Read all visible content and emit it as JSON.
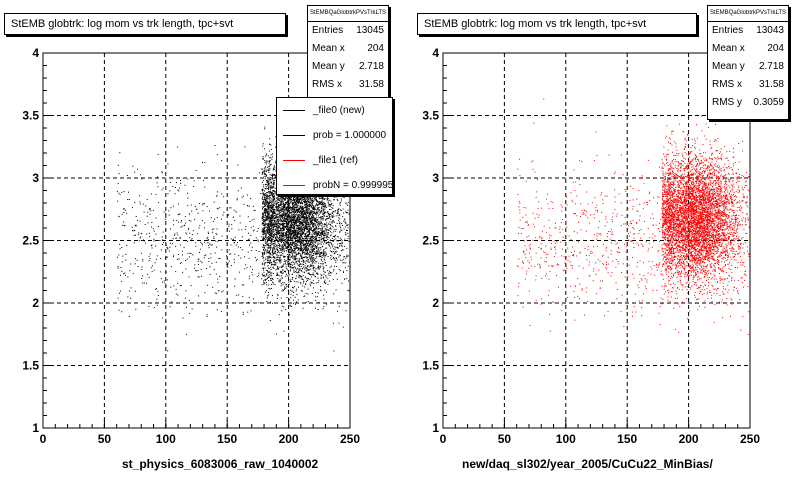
{
  "footer": "",
  "chart_data": [
    {
      "type": "scatter",
      "title": "StEMB globtrk: log mom vs trk length, tpc+svt",
      "xlabel": "st_physics_6083006_raw_1040002",
      "ylabel": "",
      "xlim": [
        0,
        250
      ],
      "ylim": [
        1,
        4
      ],
      "x_ticks": [
        "0",
        "50",
        "100",
        "150",
        "200",
        "250"
      ],
      "y_ticks": [
        "1",
        "1.5",
        "2",
        "2.5",
        "3",
        "3.5",
        "4"
      ],
      "grid": true,
      "color": "#000000",
      "series": [
        {
          "name": "_file0 (new)",
          "points": [
            [
              195,
              2.6
            ],
            [
              190,
              2.55
            ],
            [
              200,
              2.7
            ],
            [
              205,
              2.8
            ],
            [
              185,
              2.5
            ],
            [
              210,
              2.65
            ],
            [
              215,
              2.9
            ],
            [
              220,
              2.4
            ],
            [
              225,
              2.8
            ],
            [
              230,
              2.6
            ],
            [
              235,
              2.7
            ],
            [
              240,
              2.5
            ],
            [
              245,
              2.85
            ],
            [
              180,
              2.9
            ],
            [
              175,
              2.6
            ],
            [
              170,
              2.45
            ],
            [
              160,
              2.7
            ],
            [
              150,
              2.6
            ],
            [
              140,
              2.5
            ],
            [
              130,
              2.8
            ],
            [
              120,
              2.4
            ],
            [
              110,
              2.65
            ],
            [
              100,
              2.3
            ],
            [
              90,
              2.5
            ],
            [
              80,
              2.2
            ],
            [
              70,
              2.1
            ],
            [
              198,
              3.1
            ],
            [
              205,
              3.3
            ],
            [
              210,
              3.5
            ],
            [
              200,
              3.6
            ],
            [
              190,
              3.2
            ],
            [
              185,
              2.2
            ],
            [
              195,
              2.15
            ],
            [
              205,
              2.05
            ]
          ]
        }
      ],
      "stats": {
        "header": "StEMBQaGlobtrkPVsTrkLTS",
        "rows": [
          {
            "label": "Entries",
            "value": "13045"
          },
          {
            "label": "Mean x",
            "value": "204"
          },
          {
            "label": "Mean y",
            "value": "2.718"
          },
          {
            "label": "RMS x",
            "value": "31.58"
          }
        ]
      },
      "legend": [
        {
          "label": "_file0 (new)",
          "color": "#000000"
        },
        {
          "label": "prob = 1.000000",
          "color": "#000000"
        },
        {
          "label": "_file1 (ref)",
          "color": "#ff0000"
        },
        {
          "label": "probN = 0.999995",
          "color": "#ff0000"
        }
      ]
    },
    {
      "type": "scatter",
      "title": "StEMB globtrk: log mom vs trk length, tpc+svt",
      "xlabel": "new/daq_sl302/year_2005/CuCu22_MinBias/",
      "ylabel": "",
      "xlim": [
        0,
        250
      ],
      "ylim": [
        1,
        4
      ],
      "x_ticks": [
        "0",
        "50",
        "100",
        "150",
        "200",
        "250"
      ],
      "y_ticks": [
        "1",
        "1.5",
        "2",
        "2.5",
        "3",
        "3.5",
        "4"
      ],
      "grid": true,
      "color": "#ff0000",
      "series": [
        {
          "name": "_file1 (ref)",
          "points": [
            [
              195,
              2.6
            ],
            [
              190,
              2.55
            ],
            [
              200,
              2.7
            ],
            [
              205,
              2.8
            ],
            [
              185,
              2.5
            ],
            [
              210,
              2.65
            ],
            [
              215,
              2.9
            ],
            [
              220,
              2.4
            ],
            [
              225,
              2.8
            ],
            [
              230,
              2.6
            ],
            [
              235,
              2.7
            ],
            [
              240,
              2.5
            ],
            [
              245,
              2.85
            ],
            [
              180,
              2.9
            ],
            [
              175,
              2.6
            ],
            [
              170,
              2.45
            ],
            [
              160,
              2.7
            ],
            [
              150,
              2.6
            ],
            [
              140,
              2.5
            ],
            [
              130,
              2.8
            ],
            [
              120,
              2.4
            ],
            [
              110,
              2.65
            ],
            [
              100,
              2.3
            ],
            [
              90,
              2.5
            ],
            [
              80,
              2.2
            ],
            [
              70,
              2.1
            ],
            [
              198,
              3.1
            ],
            [
              205,
              3.3
            ],
            [
              210,
              3.5
            ],
            [
              200,
              3.6
            ],
            [
              190,
              3.2
            ],
            [
              185,
              2.2
            ],
            [
              195,
              2.15
            ],
            [
              205,
              2.05
            ]
          ]
        }
      ],
      "stats": {
        "header": "StEMBQaGlobtrkPVsTrkLTS",
        "rows": [
          {
            "label": "Entries",
            "value": "13043"
          },
          {
            "label": "Mean x",
            "value": "204"
          },
          {
            "label": "Mean y",
            "value": "2.718"
          },
          {
            "label": "RMS x",
            "value": "31.58"
          },
          {
            "label": "RMS y",
            "value": "0.3059"
          }
        ]
      }
    }
  ]
}
